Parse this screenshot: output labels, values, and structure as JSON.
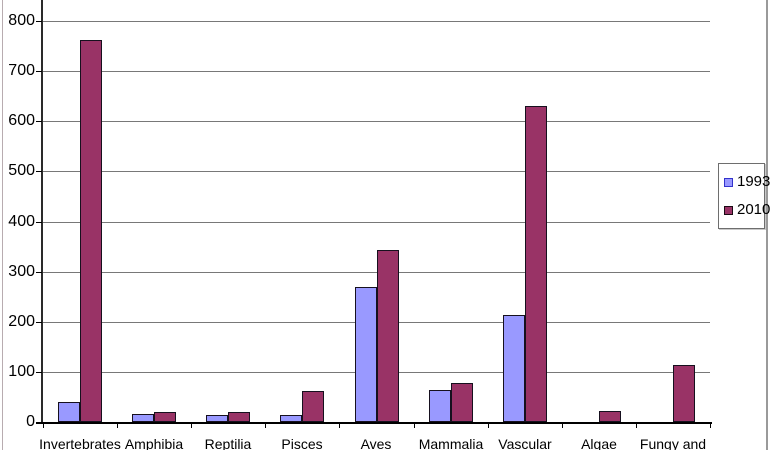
{
  "chart_data": {
    "type": "bar",
    "title": "",
    "xlabel": "",
    "ylabel": "",
    "categories": [
      "Invertebrates",
      "Amphibia",
      "Reptilia",
      "Pisces",
      "Aves",
      "Mammalia",
      "Vascular",
      "Algae",
      "Fungy and"
    ],
    "series": [
      {
        "name": "1993",
        "color": "#9999FF",
        "marker_border": "#3333CC",
        "values": [
          40,
          16,
          14,
          14,
          270,
          64,
          214,
          0,
          0
        ]
      },
      {
        "name": "2010",
        "color": "#993366",
        "marker_border": "#1A0A14",
        "values": [
          762,
          20,
          20,
          62,
          343,
          78,
          630,
          22,
          113
        ]
      }
    ],
    "ylim": [
      0,
      800
    ],
    "ytick_step": 100,
    "grid": true,
    "legend_position": "right",
    "note_cropped": "category labels are cut off at the bottom edge of the screenshot"
  },
  "colors": {
    "background": "#FFFFFF",
    "gridline": "#787878",
    "axis": "#000000",
    "bar_border": "#16101E",
    "chart_border": "#9A9A9A"
  },
  "legend": {
    "items": [
      "1993",
      "2010"
    ]
  }
}
